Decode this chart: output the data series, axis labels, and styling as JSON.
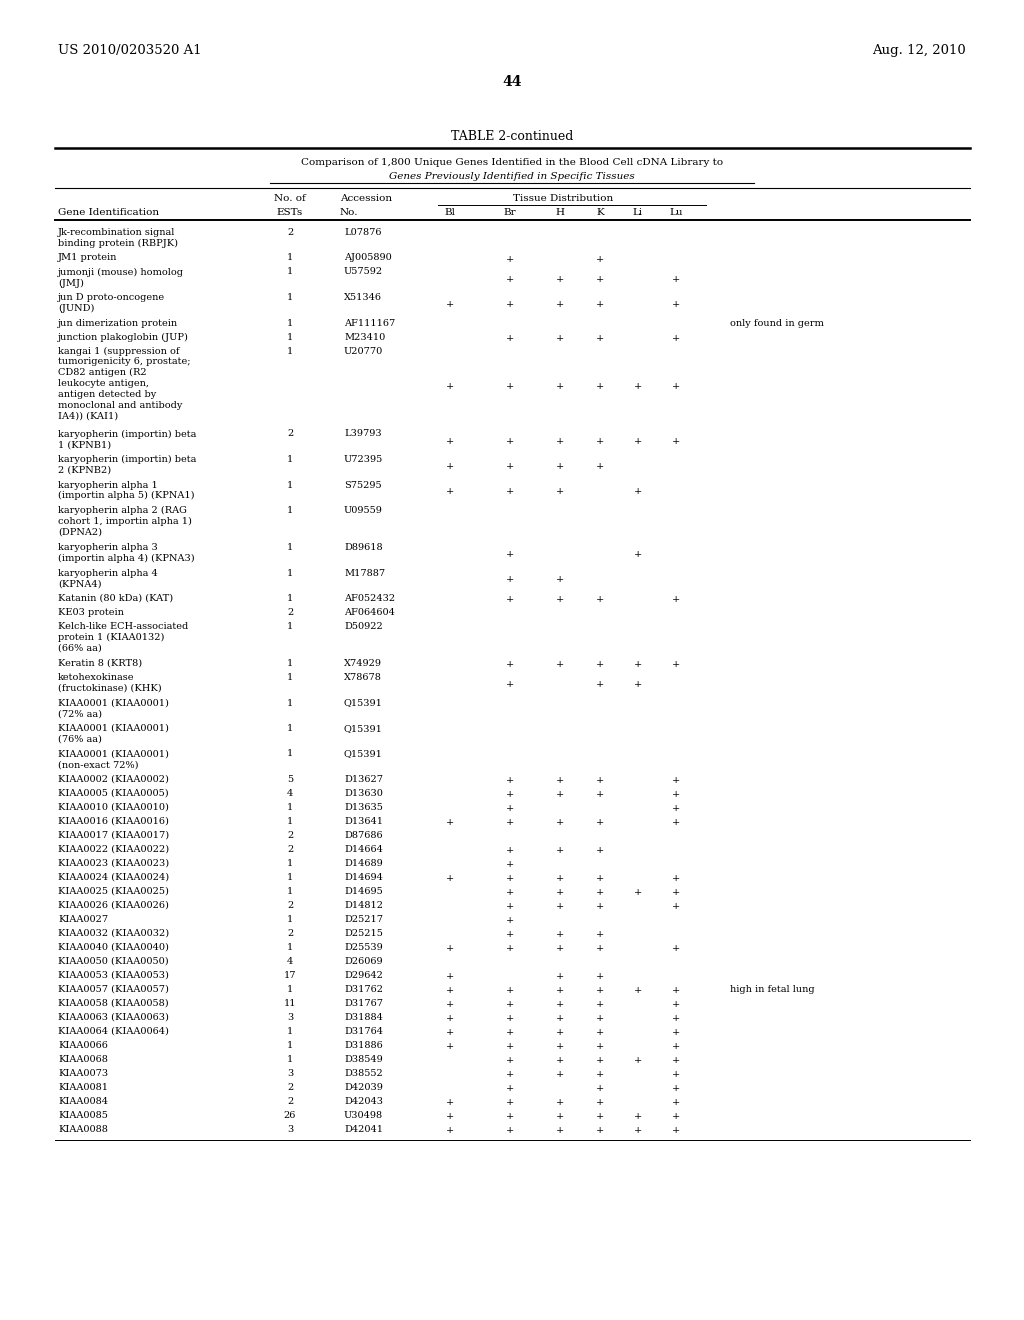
{
  "header_left": "US 2010/0203520 A1",
  "header_right": "Aug. 12, 2010",
  "page_number": "44",
  "table_title": "TABLE 2-continued",
  "subtitle1": "Comparison of 1,800 Unique Genes Identified in the Blood Cell cDNA Library to",
  "subtitle2": "Genes Previously Identified in Specific Tissues",
  "rows": [
    [
      "Jk-recombination signal\nbinding protein (RBPJK)",
      "2",
      "L07876",
      "",
      "",
      "",
      "",
      "",
      "",
      ""
    ],
    [
      "JM1 protein",
      "1",
      "AJ005890",
      "",
      "+",
      "",
      "+",
      "",
      "",
      ""
    ],
    [
      "jumonji (mouse) homolog\n(JMJ)",
      "1",
      "U57592",
      "",
      "+",
      "+",
      "+",
      "",
      "+",
      ""
    ],
    [
      "jun D proto-oncogene\n(JUND)",
      "1",
      "X51346",
      "+",
      "+",
      "+",
      "+",
      "",
      "+",
      ""
    ],
    [
      "jun dimerization protein",
      "1",
      "AF111167",
      "",
      "",
      "",
      "",
      "",
      "",
      "only found in germ"
    ],
    [
      "junction plakoglobin (JUP)",
      "1",
      "M23410",
      "",
      "+",
      "+",
      "+",
      "",
      "+",
      ""
    ],
    [
      "kangai 1 (suppression of\ntumorigenicity 6, prostate;\nCD82 antigen (R2\nleukocyte antigen,\nantigen detected by\nmonoclonal and antibody\nIA4)) (KAI1)",
      "1",
      "U20770",
      "+",
      "+",
      "+",
      "+",
      "+",
      "+",
      ""
    ],
    [
      "karyopherin (importin) beta\n1 (KPNB1)",
      "2",
      "L39793",
      "+",
      "+",
      "+",
      "+",
      "+",
      "+",
      ""
    ],
    [
      "karyopherin (importin) beta\n2 (KPNB2)",
      "1",
      "U72395",
      "+",
      "+",
      "+",
      "+",
      "",
      "",
      ""
    ],
    [
      "karyopherin alpha 1\n(importin alpha 5) (KPNA1)",
      "1",
      "S75295",
      "+",
      "+",
      "+",
      "",
      "+",
      "",
      ""
    ],
    [
      "karyopherin alpha 2 (RAG\ncohort 1, importin alpha 1)\n(DPNA2)",
      "1",
      "U09559",
      "",
      "",
      "",
      "",
      "",
      "",
      ""
    ],
    [
      "karyopherin alpha 3\n(importin alpha 4) (KPNA3)",
      "1",
      "D89618",
      "",
      "+",
      "",
      "",
      "+",
      "",
      ""
    ],
    [
      "karyopherin alpha 4\n(KPNA4)",
      "1",
      "M17887",
      "",
      "+",
      "+",
      "",
      "",
      "",
      ""
    ],
    [
      "Katanin (80 kDa) (KAT)",
      "1",
      "AF052432",
      "",
      "+",
      "+",
      "+",
      "",
      "+",
      ""
    ],
    [
      "KE03 protein",
      "2",
      "AF064604",
      "",
      "",
      "",
      "",
      "",
      "",
      ""
    ],
    [
      "Kelch-like ECH-associated\nprotein 1 (KIAA0132)\n(66% aa)",
      "1",
      "D50922",
      "",
      "",
      "",
      "",
      "",
      "",
      ""
    ],
    [
      "Keratin 8 (KRT8)",
      "1",
      "X74929",
      "",
      "+",
      "+",
      "+",
      "+",
      "+",
      ""
    ],
    [
      "ketohexokinase\n(fructokinase) (KHK)",
      "1",
      "X78678",
      "",
      "+",
      "",
      "+",
      "+",
      "",
      ""
    ],
    [
      "KIAA0001 (KIAA0001)\n(72% aa)",
      "1",
      "Q15391",
      "",
      "",
      "",
      "",
      "",
      "",
      ""
    ],
    [
      "KIAA0001 (KIAA0001)\n(76% aa)",
      "1",
      "Q15391",
      "",
      "",
      "",
      "",
      "",
      "",
      ""
    ],
    [
      "KIAA0001 (KIAA0001)\n(non-exact 72%)",
      "1",
      "Q15391",
      "",
      "",
      "",
      "",
      "",
      "",
      ""
    ],
    [
      "KIAA0002 (KIAA0002)",
      "5",
      "D13627",
      "",
      "+",
      "+",
      "+",
      "",
      "+",
      ""
    ],
    [
      "KIAA0005 (KIAA0005)",
      "4",
      "D13630",
      "",
      "+",
      "+",
      "+",
      "",
      "+",
      ""
    ],
    [
      "KIAA0010 (KIAA0010)",
      "1",
      "D13635",
      "",
      "+",
      "",
      "",
      "",
      "+",
      ""
    ],
    [
      "KIAA0016 (KIAA0016)",
      "1",
      "D13641",
      "+",
      "+",
      "+",
      "+",
      "",
      "+",
      ""
    ],
    [
      "KIAA0017 (KIAA0017)",
      "2",
      "D87686",
      "",
      "",
      "",
      "",
      "",
      "",
      ""
    ],
    [
      "KIAA0022 (KIAA0022)",
      "2",
      "D14664",
      "",
      "+",
      "+",
      "+",
      "",
      "",
      ""
    ],
    [
      "KIAA0023 (KIAA0023)",
      "1",
      "D14689",
      "",
      "+",
      "",
      "",
      "",
      "",
      ""
    ],
    [
      "KIAA0024 (KIAA0024)",
      "1",
      "D14694",
      "+",
      "+",
      "+",
      "+",
      "",
      "+",
      ""
    ],
    [
      "KIAA0025 (KIAA0025)",
      "1",
      "D14695",
      "",
      "+",
      "+",
      "+",
      "+",
      "+",
      ""
    ],
    [
      "KIAA0026 (KIAA0026)",
      "2",
      "D14812",
      "",
      "+",
      "+",
      "+",
      "",
      "+",
      ""
    ],
    [
      "KIAA0027",
      "1",
      "D25217",
      "",
      "+",
      "",
      "",
      "",
      "",
      ""
    ],
    [
      "KIAA0032 (KIAA0032)",
      "2",
      "D25215",
      "",
      "+",
      "+",
      "+",
      "",
      "",
      ""
    ],
    [
      "KIAA0040 (KIAA0040)",
      "1",
      "D25539",
      "+",
      "+",
      "+",
      "+",
      "",
      "+",
      ""
    ],
    [
      "KIAA0050 (KIAA0050)",
      "4",
      "D26069",
      "",
      "",
      "",
      "",
      "",
      "",
      ""
    ],
    [
      "KIAA0053 (KIAA0053)",
      "17",
      "D29642",
      "+",
      "",
      "+",
      "+",
      "",
      "",
      ""
    ],
    [
      "KIAA0057 (KIAA0057)",
      "1",
      "D31762",
      "+",
      "+",
      "+",
      "+",
      "+",
      "+",
      "high in fetal lung"
    ],
    [
      "KIAA0058 (KIAA0058)",
      "11",
      "D31767",
      "+",
      "+",
      "+",
      "+",
      "",
      "+",
      ""
    ],
    [
      "KIAA0063 (KIAA0063)",
      "3",
      "D31884",
      "+",
      "+",
      "+",
      "+",
      "",
      "+",
      ""
    ],
    [
      "KIAA0064 (KIAA0064)",
      "1",
      "D31764",
      "+",
      "+",
      "+",
      "+",
      "",
      "+",
      ""
    ],
    [
      "KIAA0066",
      "1",
      "D31886",
      "+",
      "+",
      "+",
      "+",
      "",
      "+",
      ""
    ],
    [
      "KIAA0068",
      "1",
      "D38549",
      "",
      "+",
      "+",
      "+",
      "+",
      "+",
      ""
    ],
    [
      "KIAA0073",
      "3",
      "D38552",
      "",
      "+",
      "+",
      "+",
      "",
      "+",
      ""
    ],
    [
      "KIAA0081",
      "2",
      "D42039",
      "",
      "+",
      "",
      "+",
      "",
      "+",
      ""
    ],
    [
      "KIAA0084",
      "2",
      "D42043",
      "+",
      "+",
      "+",
      "+",
      "",
      "+",
      ""
    ],
    [
      "KIAA0085",
      "26",
      "U30498",
      "+",
      "+",
      "+",
      "+",
      "+",
      "+",
      ""
    ],
    [
      "KIAA0088",
      "3",
      "D42041",
      "+",
      "+",
      "+",
      "+",
      "+",
      "+",
      ""
    ]
  ],
  "background_color": "#ffffff",
  "text_color": "#000000",
  "font_size": 7.0
}
